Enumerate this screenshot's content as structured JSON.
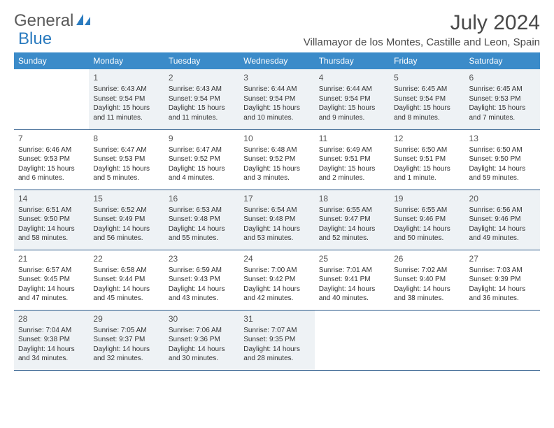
{
  "logo": {
    "text1": "General",
    "text2": "Blue"
  },
  "title": "July 2024",
  "location": "Villamayor de los Montes, Castille and Leon, Spain",
  "colors": {
    "header_bg": "#3b8bc9",
    "header_text": "#ffffff",
    "row_alt_bg": "#eef2f5",
    "row_bg": "#ffffff",
    "row_border": "#2b5a8a",
    "title_color": "#4a4a4a",
    "logo_gray": "#5a5a5a",
    "logo_blue": "#2b7bbf"
  },
  "day_headers": [
    "Sunday",
    "Monday",
    "Tuesday",
    "Wednesday",
    "Thursday",
    "Friday",
    "Saturday"
  ],
  "weeks": [
    [
      null,
      {
        "n": "1",
        "sr": "Sunrise: 6:43 AM",
        "ss": "Sunset: 9:54 PM",
        "d1": "Daylight: 15 hours",
        "d2": "and 11 minutes."
      },
      {
        "n": "2",
        "sr": "Sunrise: 6:43 AM",
        "ss": "Sunset: 9:54 PM",
        "d1": "Daylight: 15 hours",
        "d2": "and 11 minutes."
      },
      {
        "n": "3",
        "sr": "Sunrise: 6:44 AM",
        "ss": "Sunset: 9:54 PM",
        "d1": "Daylight: 15 hours",
        "d2": "and 10 minutes."
      },
      {
        "n": "4",
        "sr": "Sunrise: 6:44 AM",
        "ss": "Sunset: 9:54 PM",
        "d1": "Daylight: 15 hours",
        "d2": "and 9 minutes."
      },
      {
        "n": "5",
        "sr": "Sunrise: 6:45 AM",
        "ss": "Sunset: 9:54 PM",
        "d1": "Daylight: 15 hours",
        "d2": "and 8 minutes."
      },
      {
        "n": "6",
        "sr": "Sunrise: 6:45 AM",
        "ss": "Sunset: 9:53 PM",
        "d1": "Daylight: 15 hours",
        "d2": "and 7 minutes."
      }
    ],
    [
      {
        "n": "7",
        "sr": "Sunrise: 6:46 AM",
        "ss": "Sunset: 9:53 PM",
        "d1": "Daylight: 15 hours",
        "d2": "and 6 minutes."
      },
      {
        "n": "8",
        "sr": "Sunrise: 6:47 AM",
        "ss": "Sunset: 9:53 PM",
        "d1": "Daylight: 15 hours",
        "d2": "and 5 minutes."
      },
      {
        "n": "9",
        "sr": "Sunrise: 6:47 AM",
        "ss": "Sunset: 9:52 PM",
        "d1": "Daylight: 15 hours",
        "d2": "and 4 minutes."
      },
      {
        "n": "10",
        "sr": "Sunrise: 6:48 AM",
        "ss": "Sunset: 9:52 PM",
        "d1": "Daylight: 15 hours",
        "d2": "and 3 minutes."
      },
      {
        "n": "11",
        "sr": "Sunrise: 6:49 AM",
        "ss": "Sunset: 9:51 PM",
        "d1": "Daylight: 15 hours",
        "d2": "and 2 minutes."
      },
      {
        "n": "12",
        "sr": "Sunrise: 6:50 AM",
        "ss": "Sunset: 9:51 PM",
        "d1": "Daylight: 15 hours",
        "d2": "and 1 minute."
      },
      {
        "n": "13",
        "sr": "Sunrise: 6:50 AM",
        "ss": "Sunset: 9:50 PM",
        "d1": "Daylight: 14 hours",
        "d2": "and 59 minutes."
      }
    ],
    [
      {
        "n": "14",
        "sr": "Sunrise: 6:51 AM",
        "ss": "Sunset: 9:50 PM",
        "d1": "Daylight: 14 hours",
        "d2": "and 58 minutes."
      },
      {
        "n": "15",
        "sr": "Sunrise: 6:52 AM",
        "ss": "Sunset: 9:49 PM",
        "d1": "Daylight: 14 hours",
        "d2": "and 56 minutes."
      },
      {
        "n": "16",
        "sr": "Sunrise: 6:53 AM",
        "ss": "Sunset: 9:48 PM",
        "d1": "Daylight: 14 hours",
        "d2": "and 55 minutes."
      },
      {
        "n": "17",
        "sr": "Sunrise: 6:54 AM",
        "ss": "Sunset: 9:48 PM",
        "d1": "Daylight: 14 hours",
        "d2": "and 53 minutes."
      },
      {
        "n": "18",
        "sr": "Sunrise: 6:55 AM",
        "ss": "Sunset: 9:47 PM",
        "d1": "Daylight: 14 hours",
        "d2": "and 52 minutes."
      },
      {
        "n": "19",
        "sr": "Sunrise: 6:55 AM",
        "ss": "Sunset: 9:46 PM",
        "d1": "Daylight: 14 hours",
        "d2": "and 50 minutes."
      },
      {
        "n": "20",
        "sr": "Sunrise: 6:56 AM",
        "ss": "Sunset: 9:46 PM",
        "d1": "Daylight: 14 hours",
        "d2": "and 49 minutes."
      }
    ],
    [
      {
        "n": "21",
        "sr": "Sunrise: 6:57 AM",
        "ss": "Sunset: 9:45 PM",
        "d1": "Daylight: 14 hours",
        "d2": "and 47 minutes."
      },
      {
        "n": "22",
        "sr": "Sunrise: 6:58 AM",
        "ss": "Sunset: 9:44 PM",
        "d1": "Daylight: 14 hours",
        "d2": "and 45 minutes."
      },
      {
        "n": "23",
        "sr": "Sunrise: 6:59 AM",
        "ss": "Sunset: 9:43 PM",
        "d1": "Daylight: 14 hours",
        "d2": "and 43 minutes."
      },
      {
        "n": "24",
        "sr": "Sunrise: 7:00 AM",
        "ss": "Sunset: 9:42 PM",
        "d1": "Daylight: 14 hours",
        "d2": "and 42 minutes."
      },
      {
        "n": "25",
        "sr": "Sunrise: 7:01 AM",
        "ss": "Sunset: 9:41 PM",
        "d1": "Daylight: 14 hours",
        "d2": "and 40 minutes."
      },
      {
        "n": "26",
        "sr": "Sunrise: 7:02 AM",
        "ss": "Sunset: 9:40 PM",
        "d1": "Daylight: 14 hours",
        "d2": "and 38 minutes."
      },
      {
        "n": "27",
        "sr": "Sunrise: 7:03 AM",
        "ss": "Sunset: 9:39 PM",
        "d1": "Daylight: 14 hours",
        "d2": "and 36 minutes."
      }
    ],
    [
      {
        "n": "28",
        "sr": "Sunrise: 7:04 AM",
        "ss": "Sunset: 9:38 PM",
        "d1": "Daylight: 14 hours",
        "d2": "and 34 minutes."
      },
      {
        "n": "29",
        "sr": "Sunrise: 7:05 AM",
        "ss": "Sunset: 9:37 PM",
        "d1": "Daylight: 14 hours",
        "d2": "and 32 minutes."
      },
      {
        "n": "30",
        "sr": "Sunrise: 7:06 AM",
        "ss": "Sunset: 9:36 PM",
        "d1": "Daylight: 14 hours",
        "d2": "and 30 minutes."
      },
      {
        "n": "31",
        "sr": "Sunrise: 7:07 AM",
        "ss": "Sunset: 9:35 PM",
        "d1": "Daylight: 14 hours",
        "d2": "and 28 minutes."
      },
      null,
      null,
      null
    ]
  ]
}
